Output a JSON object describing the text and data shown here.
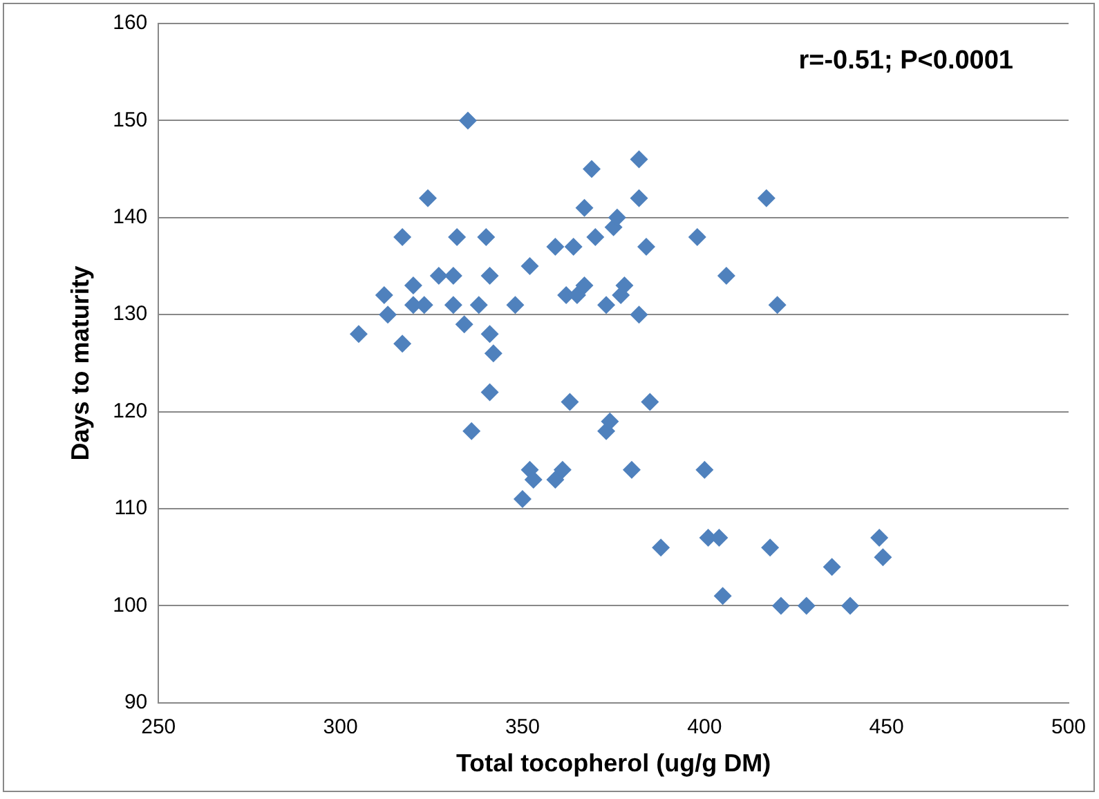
{
  "chart_data": {
    "type": "scatter",
    "xlabel": "Total tocopherol (ug/g DM)",
    "ylabel": "Days to maturity",
    "annotations": [
      "r=-0.51; P<0.0001"
    ],
    "x": [
      305,
      312,
      313,
      317,
      317,
      320,
      320,
      323,
      324,
      327,
      331,
      332,
      331,
      334,
      335,
      336,
      338,
      340,
      341,
      341,
      341,
      342,
      348,
      352,
      350,
      352,
      353,
      359,
      359,
      361,
      362,
      364,
      365,
      363,
      367,
      367,
      369,
      370,
      373,
      373,
      374,
      375,
      376,
      377,
      378,
      380,
      382,
      382,
      382,
      384,
      385,
      388,
      398,
      400,
      401,
      404,
      405,
      406,
      417,
      418,
      420,
      421,
      428,
      435,
      440,
      448,
      449
    ],
    "values": [
      128,
      132,
      130,
      138,
      127,
      133,
      131,
      131,
      142,
      134,
      134,
      138,
      131,
      129,
      150,
      118,
      131,
      138,
      134,
      128,
      122,
      126,
      131,
      135,
      111,
      114,
      113,
      137,
      113,
      114,
      132,
      137,
      132,
      121,
      141,
      133,
      145,
      138,
      131,
      118,
      119,
      139,
      140,
      132,
      133,
      114,
      146,
      142,
      130,
      137,
      121,
      106,
      138,
      114,
      107,
      107,
      101,
      134,
      142,
      106,
      131,
      100,
      100,
      104,
      100,
      107,
      105
    ],
    "color": "#4f81bd",
    "marker": "diamond",
    "xlim": [
      250,
      500
    ],
    "xticks": [
      250,
      300,
      350,
      400,
      450,
      500
    ],
    "ylim": [
      90,
      160
    ],
    "yticks": [
      90,
      100,
      110,
      120,
      130,
      140,
      150,
      160
    ],
    "grid": "y",
    "legend": false
  }
}
